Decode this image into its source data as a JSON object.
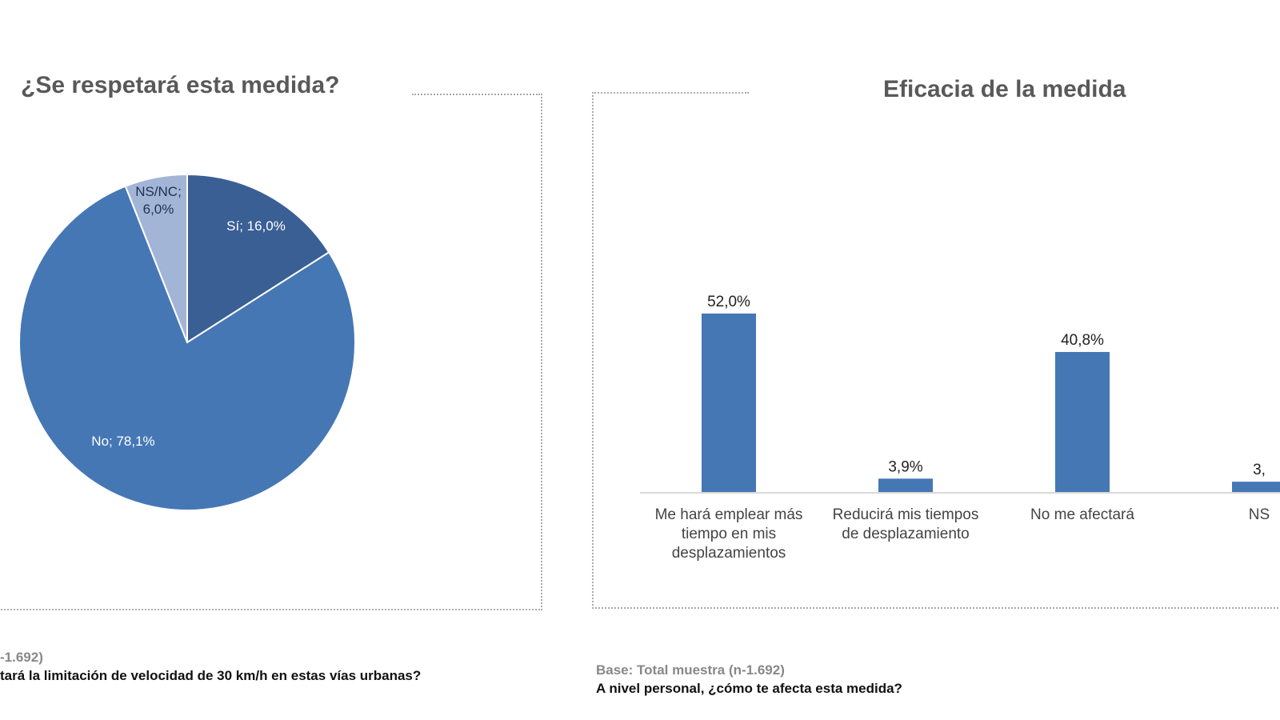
{
  "chart_data": [
    {
      "type": "pie",
      "title": "¿Se respetará esta medida?",
      "slices": [
        {
          "label": "Sí; 16,0%",
          "name": "Sí",
          "value": 16.0,
          "color": "#3a5f94"
        },
        {
          "label": "No; 78,1%",
          "name": "No",
          "value": 78.1,
          "color": "#4677b5"
        },
        {
          "label": "NS/NC; 6,0%",
          "name": "NS/NC",
          "value": 6.0,
          "color": "#a3b5d6"
        }
      ]
    },
    {
      "type": "bar",
      "title": "Eficacia de la medida",
      "color": "#4677b5",
      "categories": [
        "Me hará emplear más tiempo en mis desplazamientos",
        "Reducirá mis tiempos de desplazamiento",
        "No me afectará",
        "NS"
      ],
      "values": [
        52.0,
        3.9,
        40.8,
        3.0
      ],
      "data_labels": [
        "52,0%",
        "3,9%",
        "40,8%",
        "3,"
      ]
    }
  ],
  "footer_left": {
    "base": "-1.692)",
    "question": "tará la limitación de velocidad de 30 km/h en estas vías urbanas?"
  },
  "footer_right": {
    "base": "Base: Total muestra (n-1.692)",
    "question": "A nivel personal, ¿cómo te afecta esta medida?"
  }
}
